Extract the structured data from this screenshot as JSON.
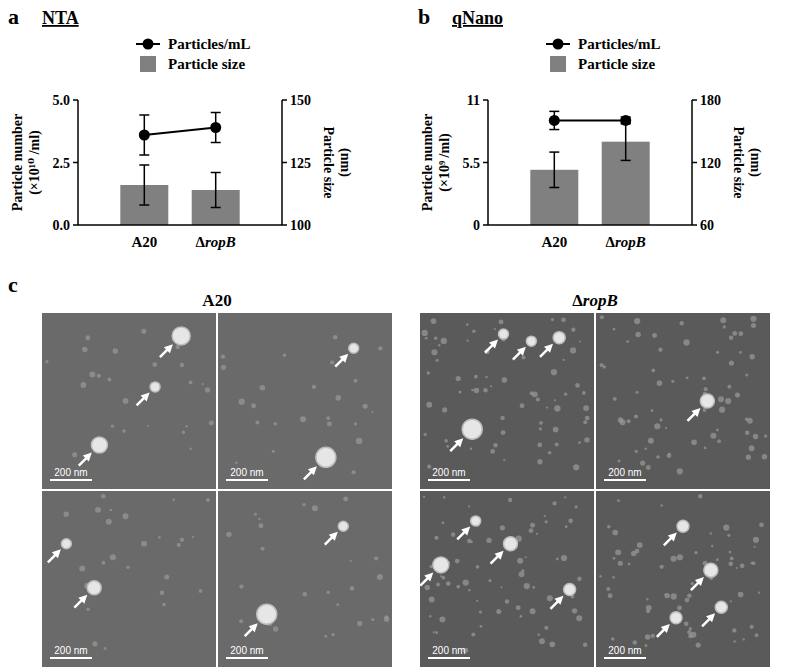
{
  "chart_data": [
    {
      "type": "bar",
      "panel": "a",
      "title": "NTA",
      "categories": [
        "A20",
        "ΔropB"
      ],
      "y_label": [
        "Particle number",
        "(×10¹⁰ /ml)"
      ],
      "y2_label": [
        "Particle size",
        "(nm)"
      ],
      "ylim": [
        0,
        5
      ],
      "yticks": [
        {
          "value": 0,
          "label": "0.0"
        },
        {
          "value": 2.5,
          "label": "2.5"
        },
        {
          "value": 5,
          "label": "5.0"
        }
      ],
      "y2lim": [
        100,
        150
      ],
      "y2ticks": [
        100,
        125,
        150
      ],
      "legend": "top",
      "series": [
        {
          "name": "Particles/mL",
          "type": "line",
          "color": "#000000",
          "marker": "circle",
          "values": [
            3.6,
            3.9
          ],
          "errors": [
            0.8,
            0.6
          ]
        },
        {
          "name": "Particle size",
          "type": "bar",
          "color": "#808080",
          "axis": "y2",
          "values": [
            116,
            114
          ],
          "errors": [
            8,
            7
          ]
        }
      ]
    },
    {
      "type": "bar",
      "panel": "b",
      "title": "qNano",
      "categories": [
        "A20",
        "ΔropB"
      ],
      "y_label": [
        "Particle number",
        "(×10⁹ /ml)"
      ],
      "y2_label": [
        "Particle size",
        "(nm)"
      ],
      "ylim": [
        0,
        11
      ],
      "yticks": [
        0,
        5.5,
        11
      ],
      "y2lim": [
        60,
        180
      ],
      "y2ticks": [
        60,
        120,
        180
      ],
      "legend": "top",
      "series": [
        {
          "name": "Particles/mL",
          "type": "line",
          "color": "#000000",
          "marker": "circle",
          "values": [
            9.2,
            9.2
          ],
          "errors": [
            0.8,
            0.3
          ]
        },
        {
          "name": "Particle size",
          "type": "bar",
          "color": "#808080",
          "axis": "y2",
          "values": [
            113,
            140
          ],
          "errors": [
            17,
            18
          ]
        }
      ]
    }
  ],
  "micrographs": {
    "panel": "c",
    "groups": [
      {
        "title": "A20",
        "scale_bars": [
          "200 nm",
          "200 nm",
          "200 nm",
          "200 nm"
        ]
      },
      {
        "title": "ΔropB",
        "scale_bars": [
          "200 nm",
          "200 nm",
          "200 nm",
          "200 nm"
        ]
      }
    ]
  }
}
